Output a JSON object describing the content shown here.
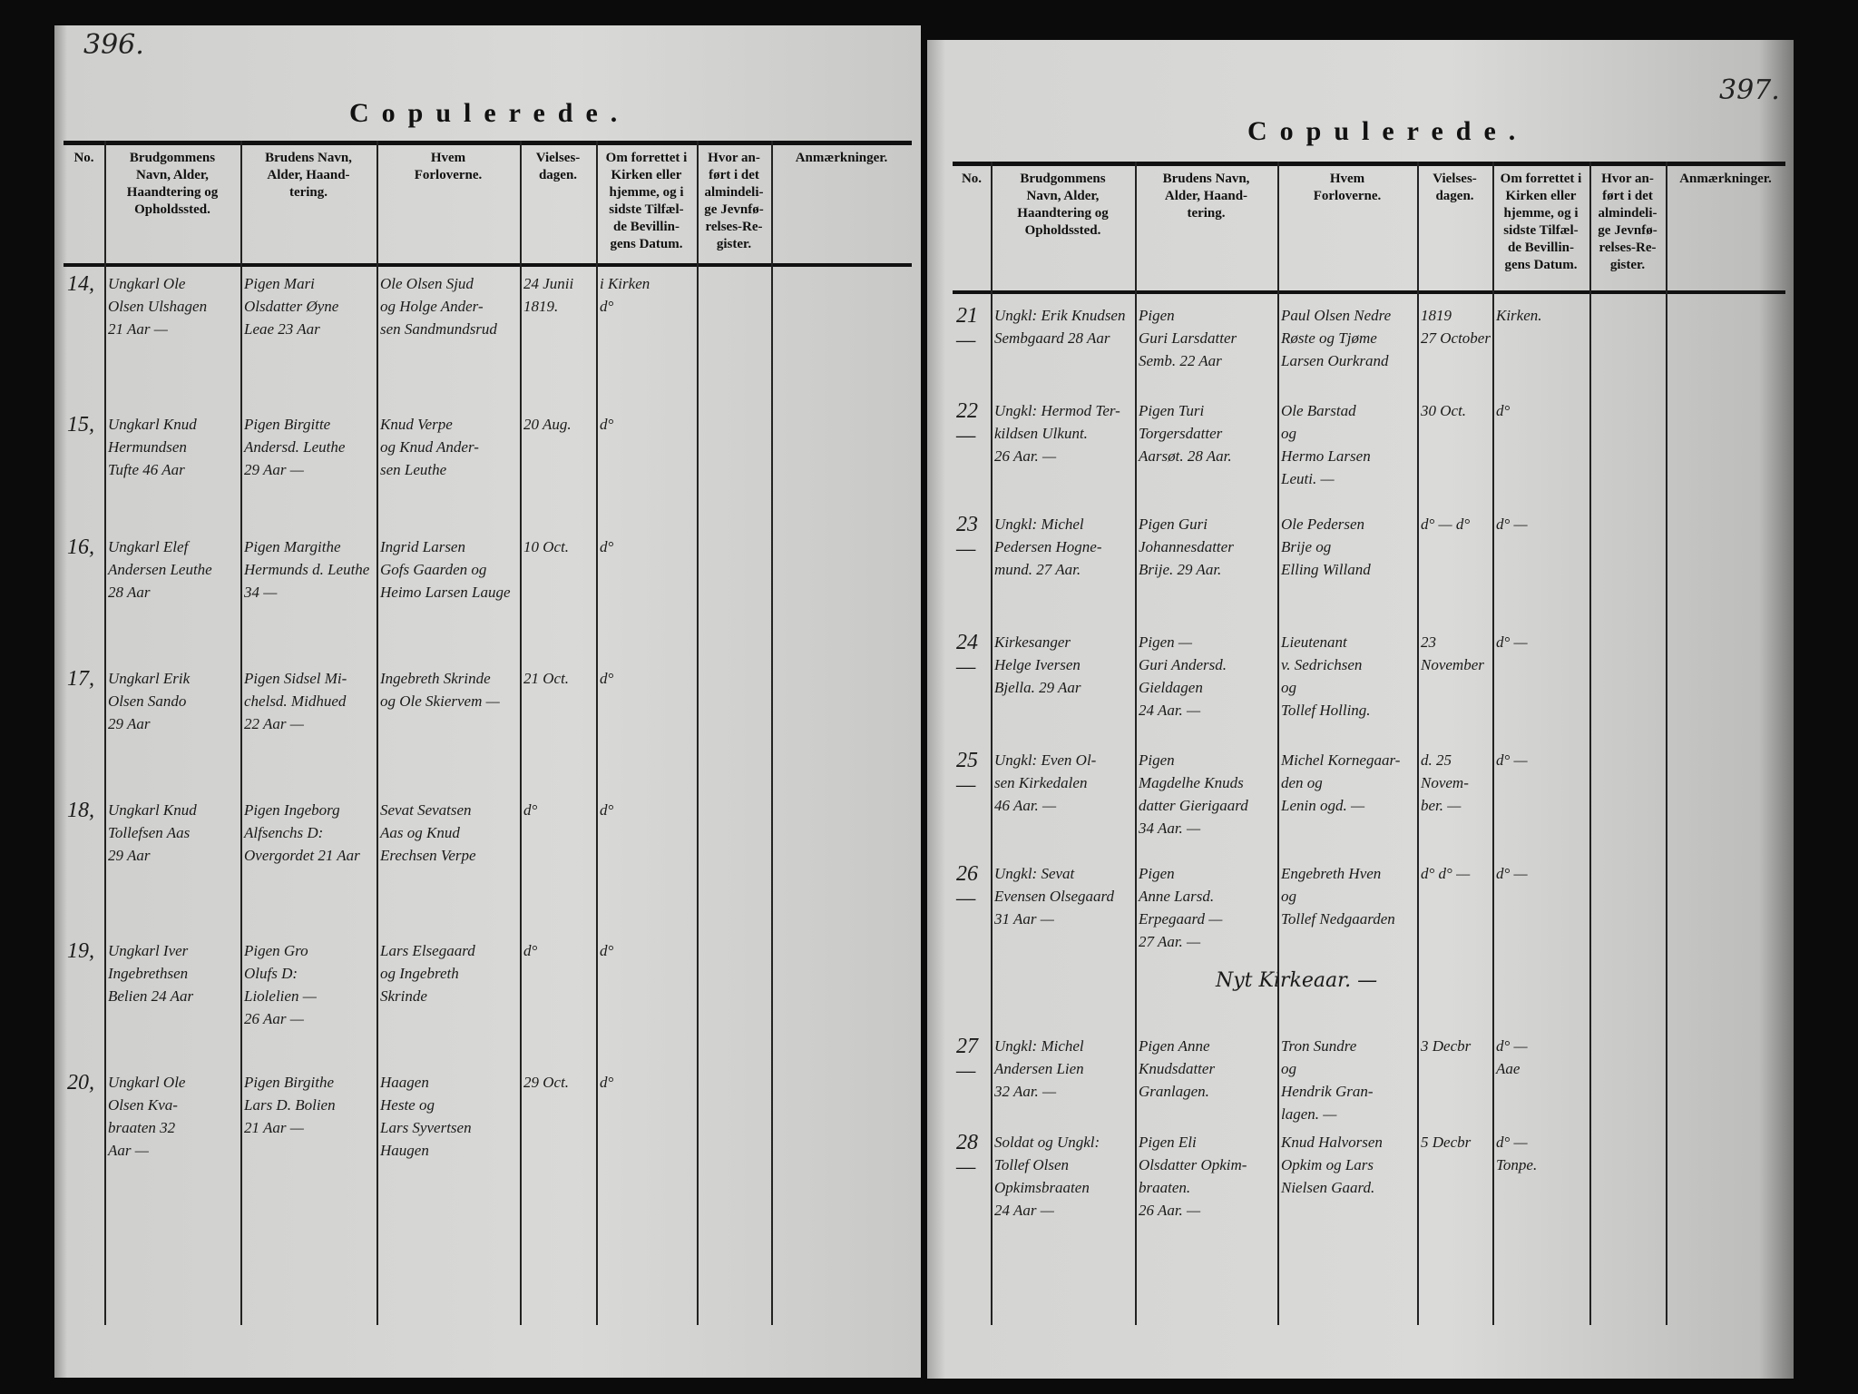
{
  "left_page": {
    "page_number": "396.",
    "title": "Copulerede.",
    "headers": [
      "No.",
      "Brudgommens\nNavn, Alder,\nHaandtering og\nOpholdssted.",
      "Brudens Navn,\nAlder, Haand-\ntering.",
      "Hvem\nForloverne.",
      "Vielses-\ndagen.",
      "Om forrettet i\nKirken eller\nhjemme, og i\nsidste Tilfæl-\nde Bevillin-\ngens Datum.",
      "Hvor an-\nført i det\nalmindeli-\nge Jevnfø-\nrelses-Re-\ngister.",
      "Anmærkninger."
    ],
    "entries": [
      {
        "no": "14,",
        "groom": "Ungkarl Ole\nOlsen Ulshagen\n21 Aar —",
        "bride": "Pigen Mari\nOlsdatter Øyne\nLeae 23 Aar",
        "witnesses": "Ole Olsen Sjud\nog Holge Ander-\nsen Sandmundsrud",
        "date": "24 Junii\n1819.",
        "place": "i Kirken\nd°"
      },
      {
        "no": "15,",
        "groom": "Ungkarl Knud\nHermundsen\nTufte 46 Aar",
        "bride": "Pigen Birgitte\nAndersd. Leuthe\n29 Aar —",
        "witnesses": "Knud Verpe\nog Knud Ander-\nsen Leuthe",
        "date": "20 Aug.",
        "place": "d°"
      },
      {
        "no": "16,",
        "groom": "Ungkarl Elef\nAndersen Leuthe\n28 Aar",
        "bride": "Pigen Margithe\nHermunds d. Leuthe\n34 —",
        "witnesses": "Ingrid Larsen\nGofs Gaarden og\nHeimo Larsen Lauge",
        "date": "10 Oct.",
        "place": "d°"
      },
      {
        "no": "17,",
        "groom": "Ungkarl Erik\nOlsen Sando\n29 Aar",
        "bride": "Pigen Sidsel Mi-\nchelsd. Midhued\n22 Aar —",
        "witnesses": "Ingebreth Skrinde\nog Ole Skiervem —",
        "date": "21 Oct.",
        "place": "d°"
      },
      {
        "no": "18,",
        "groom": "Ungkarl Knud\nTollefsen Aas\n29 Aar",
        "bride": "Pigen Ingeborg\nAlfsenchs D:\nOvergordet 21 Aar",
        "witnesses": "Sevat Sevatsen\nAas og Knud\nErechsen Verpe",
        "date": "d°",
        "place": "d°"
      },
      {
        "no": "19,",
        "groom": "Ungkarl Iver\nIngebrethsen\nBelien 24 Aar",
        "bride": "Pigen Gro\nOlufs D:\nLiolelien —\n26 Aar —",
        "witnesses": "Lars Elsegaard\nog Ingebreth\nSkrinde",
        "date": "d°",
        "place": "d°"
      },
      {
        "no": "20,",
        "groom": "Ungkarl Ole\nOlsen Kva-\nbraaten 32\nAar —",
        "bride": "Pigen Birgithe\nLars D. Bolien\n21 Aar —",
        "witnesses": "Haagen\nHeste og\nLars Syvertsen\nHaugen",
        "date": "29 Oct.",
        "place": "d°"
      }
    ]
  },
  "right_page": {
    "page_number": "397.",
    "title": "Copulerede.",
    "headers": [
      "No.",
      "Brudgommens\nNavn, Alder,\nHaandtering og\nOpholdssted.",
      "Brudens Navn,\nAlder, Haand-\ntering.",
      "Hvem\nForloverne.",
      "Vielses-\ndagen.",
      "Om forrettet i\nKirken eller\nhjemme, og i\nsidste Tilfæl-\nde Bevillin-\ngens Datum.",
      "Hvor an-\nført i det\nalmindeli-\nge Jevnfø-\nrelses-Re-\ngister.",
      "Anmærkninger."
    ],
    "entries": [
      {
        "no": "21 —",
        "groom": "Ungkl: Erik Knudsen\nSembgaard 28 Aar",
        "bride": "Pigen\nGuri Larsdatter\nSemb. 22 Aar",
        "witnesses": "Paul Olsen Nedre\nRøste og Tjøme\nLarsen Ourkrand",
        "date": "1819\n27 October",
        "place": "Kirken."
      },
      {
        "no": "22 —",
        "groom": "Ungkl: Hermod Ter-\nkildsen Ulkunt.\n26 Aar. —",
        "bride": "Pigen Turi\nTorgersdatter\nAarsøt. 28 Aar.",
        "witnesses": "Ole Barstad\nog\nHermo Larsen\nLeuti. —",
        "date": "30 Oct.",
        "place": "d°"
      },
      {
        "no": "23 —",
        "groom": "Ungkl: Michel\nPedersen Hogne-\nmund. 27 Aar.",
        "bride": "Pigen Guri\nJohannesdatter\nBrije. 29 Aar.",
        "witnesses": "Ole Pedersen\nBrije og\nElling Willand",
        "date": "d° — d°",
        "place": "d° —"
      },
      {
        "no": "24 —",
        "groom": "Kirkesanger\nHelge Iversen\nBjella. 29 Aar",
        "bride": "Pigen —\nGuri Andersd.\nGieldagen\n24 Aar. —",
        "witnesses": "Lieutenant\nv. Sedrichsen\nog\nTollef Holling.",
        "date": "23 November",
        "place": "d° —"
      },
      {
        "no": "25 —",
        "groom": "Ungkl: Even Ol-\nsen Kirkedalen\n46 Aar. —",
        "bride": "Pigen\nMagdelhe Knuds\ndatter Gierigaard\n34 Aar. —",
        "witnesses": "Michel Kornegaar-\nden og\nLenin ogd. —",
        "date": "d. 25 Novem-\nber. —",
        "place": "d° —"
      },
      {
        "no": "26 —",
        "groom": "Ungkl: Sevat\nEvensen Olsegaard\n31 Aar —",
        "bride": "Pigen\nAnne Larsd.\nErpegaard —\n27 Aar. —",
        "witnesses": "Engebreth Hven\nog\nTollef Nedgaarden",
        "date": "d° d° —",
        "place": "d° —"
      },
      {
        "no": "27 —",
        "groom": "Ungkl: Michel\nAndersen Lien\n32 Aar. —",
        "bride": "Pigen Anne\nKnudsdatter\nGranlagen.",
        "witnesses": "Tron Sundre\nog\nHendrik Gran-\nlagen. —",
        "date": "3 Decbr",
        "place": "d° —\nAae"
      },
      {
        "no": "28 —",
        "groom": "Soldat og Ungkl:\nTollef Olsen\nOpkimsbraaten\n24 Aar —",
        "bride": "Pigen Eli\nOlsdatter Opkim-\nbraaten.\n26 Aar. —",
        "witnesses": "Knud Halvorsen\nOpkim og Lars\nNielsen Gaard.",
        "date": "5 Decbr",
        "place": "d° —\nTonpe."
      }
    ],
    "year_note": "Nyt Kirkeaar. —"
  }
}
